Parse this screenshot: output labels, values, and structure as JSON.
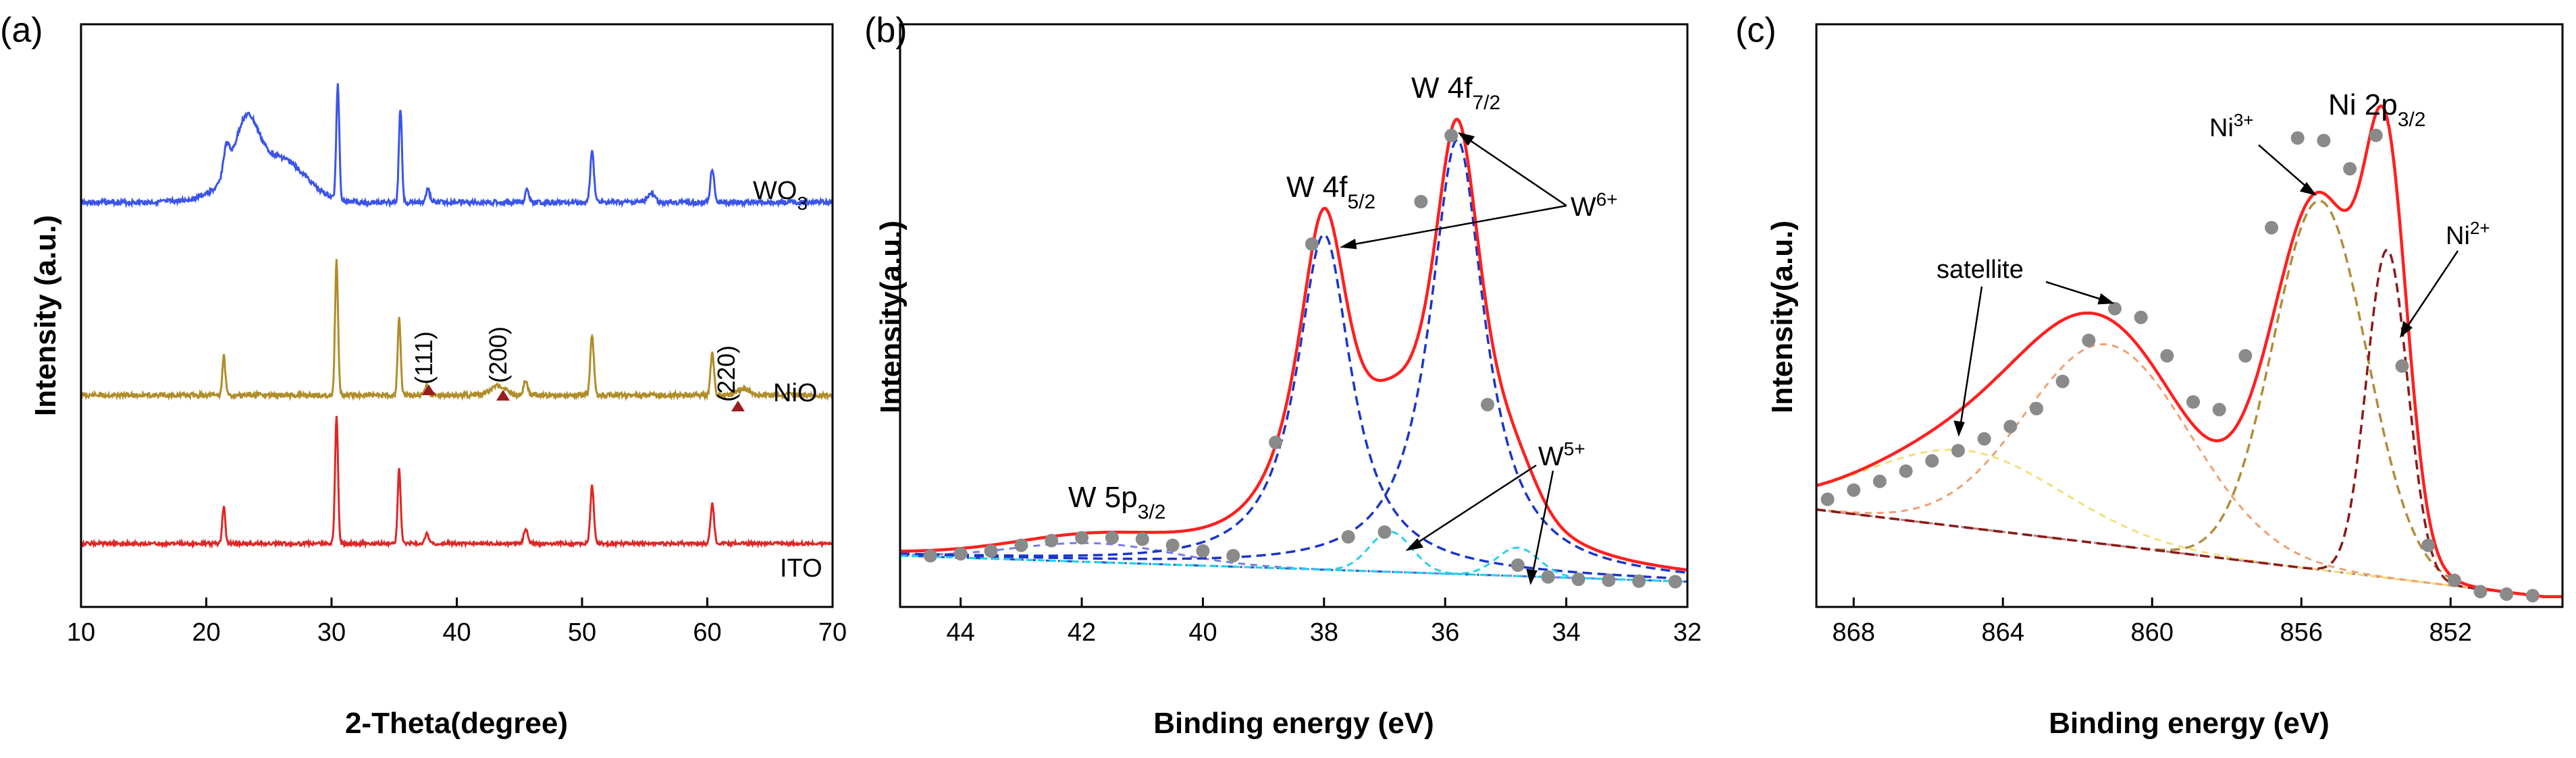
{
  "chart_data": [
    {
      "type": "line",
      "panel_label": "(a)",
      "xlabel": "2-Theta(degree)",
      "ylabel": "Intensity (a.u.)",
      "xlim": [
        10,
        70
      ],
      "xticks": [
        "10",
        "20",
        "30",
        "40",
        "50",
        "60",
        "70"
      ],
      "grid": false,
      "series": [
        {
          "name": "WO3",
          "label_main": "WO",
          "label_sub": "3",
          "color": "#3b54e8"
        },
        {
          "name": "NiO",
          "label_main": "NiO",
          "label_sub": "",
          "color": "#b08d2a"
        },
        {
          "name": "ITO",
          "label_main": "ITO",
          "label_sub": "",
          "color": "#e02626"
        }
      ],
      "peak_labels": [
        {
          "text": "(111)",
          "two_theta": 37.3
        },
        {
          "text": "(200)",
          "two_theta": 43.3
        },
        {
          "text": "(220)",
          "two_theta": 62.9
        }
      ],
      "marker_color": "#9b1c1c"
    },
    {
      "type": "line",
      "panel_label": "(b)",
      "xlabel": "Binding energy (eV)",
      "ylabel": "Intensity(a.u.)",
      "xlim": [
        45,
        32
      ],
      "xticks": [
        "44",
        "42",
        "40",
        "38",
        "36",
        "34",
        "32"
      ],
      "grid": false,
      "annotations": [
        {
          "main": "W 4f",
          "sub": "7/2",
          "sup": ""
        },
        {
          "main": "W 4f",
          "sub": "5/2",
          "sup": ""
        },
        {
          "main": "W 5p",
          "sub": "3/2",
          "sup": ""
        },
        {
          "main": "W",
          "sub": "",
          "sup": "6+"
        },
        {
          "main": "W",
          "sub": "",
          "sup": "5+"
        }
      ],
      "data_points": {
        "x": [
          44.5,
          44.0,
          43.5,
          43.0,
          42.5,
          42.0,
          41.5,
          41.0,
          40.5,
          40.0,
          39.5,
          38.8,
          38.2,
          37.6,
          37.0,
          36.4,
          35.9,
          35.3,
          34.8,
          34.3,
          33.8,
          33.3,
          32.8,
          32.2
        ],
        "y": [
          0.06,
          0.064,
          0.07,
          0.082,
          0.092,
          0.098,
          0.098,
          0.095,
          0.082,
          0.07,
          0.06,
          0.3,
          0.72,
          0.1,
          0.11,
          0.81,
          0.95,
          0.38,
          0.04,
          0.015,
          0.01,
          0.008,
          0.006,
          0.005
        ]
      },
      "series": [
        {
          "name": "fit envelope",
          "color": "#ff1f1f"
        },
        {
          "name": "W6+ components",
          "color": "#1a35c8"
        },
        {
          "name": "W5+ components",
          "color": "#22d3ee"
        },
        {
          "name": "W 5p3/2",
          "color": "#7a7ae8"
        },
        {
          "name": "background",
          "color": "#2b4fc4"
        }
      ],
      "marker_color": "#8a8a8a"
    },
    {
      "type": "line",
      "panel_label": "(c)",
      "xlabel": "Binding energy (eV)",
      "ylabel": "Intensity(a.u.)",
      "xlim": [
        869,
        849
      ],
      "xticks": [
        "868",
        "864",
        "860",
        "856",
        "852"
      ],
      "grid": false,
      "annotations": [
        {
          "main": "Ni 2p",
          "sub": "3/2",
          "sup": ""
        },
        {
          "main": "Ni",
          "sub": "",
          "sup": "3+"
        },
        {
          "main": "Ni",
          "sub": "",
          "sup": "2+"
        },
        {
          "main": "satellite",
          "sub": "",
          "sup": ""
        }
      ],
      "data_points": {
        "x": [
          868.7,
          868.0,
          867.3,
          866.6,
          865.9,
          865.2,
          864.5,
          863.8,
          863.1,
          862.4,
          861.7,
          861.0,
          860.3,
          859.6,
          858.9,
          858.2,
          857.5,
          856.8,
          856.1,
          855.4,
          854.7,
          854.0,
          853.3,
          852.6,
          851.9,
          851.2,
          850.5,
          849.8
        ],
        "y": [
          0.21,
          0.228,
          0.245,
          0.265,
          0.285,
          0.305,
          0.328,
          0.352,
          0.387,
          0.44,
          0.52,
          0.582,
          0.565,
          0.49,
          0.4,
          0.385,
          0.49,
          0.74,
          0.915,
          0.91,
          0.855,
          0.92,
          0.47,
          0.12,
          0.052,
          0.03,
          0.025,
          0.022
        ]
      },
      "series": [
        {
          "name": "fit envelope",
          "color": "#ff1f1f"
        },
        {
          "name": "Ni3+",
          "color": "#b08d3a"
        },
        {
          "name": "Ni2+",
          "color": "#8b1a1a"
        },
        {
          "name": "satellite",
          "color": "#f0a070"
        },
        {
          "name": "satellite 2",
          "color": "#f2e07a"
        },
        {
          "name": "background",
          "color": "#b08080"
        }
      ],
      "marker_color": "#8a8a8a"
    }
  ]
}
